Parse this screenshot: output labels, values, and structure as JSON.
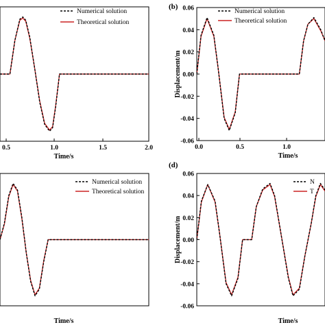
{
  "chart_data": [
    {
      "type": "line",
      "panel_label": "",
      "xlabel": "Time/s",
      "ylabel": "",
      "xlim": [
        0.5,
        2.0
      ],
      "ylim": [
        -0.06,
        0.06
      ],
      "xticks": [
        "0.5",
        "1.0",
        "1.5",
        "2.0"
      ],
      "yticks": [],
      "legend": [
        "Numerical solution",
        "Theoretical solution"
      ],
      "legend_position": "top-right",
      "series": [
        {
          "name": "Numerical solution",
          "style": "dashed",
          "color": "#000000",
          "x": [
            0.5,
            0.6,
            0.65,
            0.7,
            0.73,
            0.76,
            0.8,
            0.85,
            0.9,
            0.95,
            1.0,
            1.03,
            1.06,
            1.1,
            2.0
          ],
          "y": [
            0,
            0,
            0.03,
            0.049,
            0.051,
            0.048,
            0.033,
            0.005,
            -0.025,
            -0.045,
            -0.051,
            -0.048,
            -0.03,
            0,
            0
          ]
        },
        {
          "name": "Theoretical solution",
          "style": "solid",
          "color": "#cc2222",
          "x": [
            0.5,
            0.6,
            0.65,
            0.7,
            0.73,
            0.76,
            0.8,
            0.85,
            0.9,
            0.95,
            1.0,
            1.03,
            1.06,
            1.1,
            2.0
          ],
          "y": [
            0,
            0,
            0.03,
            0.048,
            0.05,
            0.047,
            0.032,
            0.005,
            -0.024,
            -0.044,
            -0.05,
            -0.047,
            -0.029,
            0,
            0
          ]
        }
      ]
    },
    {
      "type": "line",
      "panel_label": "(b)",
      "xlabel": "Time/s",
      "ylabel": "Displacement/m",
      "xlim": [
        0.0,
        1.5
      ],
      "ylim": [
        -0.06,
        0.06
      ],
      "xticks": [
        "0.0",
        "0.5",
        "1.0"
      ],
      "yticks": [
        "-0.06",
        "-0.04",
        "-0.02",
        "0.00",
        "0.02",
        "0.04",
        "0.06"
      ],
      "legend": [
        "Numerical solution",
        "Theoretical solution"
      ],
      "legend_position": "top-right",
      "series": [
        {
          "name": "Numerical solution",
          "style": "dashed",
          "color": "#000000",
          "x": [
            0.0,
            0.05,
            0.12,
            0.2,
            0.25,
            0.32,
            0.38,
            0.45,
            0.5,
            0.55,
            1.2,
            1.25,
            1.3,
            1.37,
            1.45,
            1.5
          ],
          "y": [
            0,
            0.035,
            0.051,
            0.035,
            0.005,
            -0.04,
            -0.051,
            -0.035,
            0,
            0,
            0,
            0.03,
            0.045,
            0.051,
            0.04,
            0.03
          ]
        },
        {
          "name": "Theoretical solution",
          "style": "solid",
          "color": "#cc2222",
          "x": [
            0.0,
            0.05,
            0.12,
            0.2,
            0.25,
            0.32,
            0.38,
            0.45,
            0.5,
            0.55,
            1.2,
            1.25,
            1.3,
            1.37,
            1.45,
            1.5
          ],
          "y": [
            0,
            0.034,
            0.05,
            0.034,
            0.005,
            -0.039,
            -0.05,
            -0.034,
            0,
            0,
            0,
            0.03,
            0.045,
            0.05,
            0.039,
            0.03
          ]
        }
      ]
    },
    {
      "type": "line",
      "panel_label": "",
      "xlabel": "Time/s",
      "ylabel": "",
      "xlim": [
        0.3,
        2.0
      ],
      "ylim": [
        -0.06,
        0.06
      ],
      "xticks": [],
      "yticks": [],
      "legend": [
        "Numerical solution",
        "Theoretical solution"
      ],
      "legend_position": "top-right",
      "series": [
        {
          "name": "Numerical solution",
          "style": "dashed",
          "color": "#000000",
          "x": [
            0.3,
            0.35,
            0.4,
            0.45,
            0.5,
            0.55,
            0.6,
            0.65,
            0.7,
            0.75,
            0.8,
            0.85,
            2.0
          ],
          "y": [
            0,
            0.015,
            0.04,
            0.051,
            0.045,
            0.02,
            -0.012,
            -0.038,
            -0.051,
            -0.045,
            -0.02,
            0,
            0
          ]
        },
        {
          "name": "Theoretical solution",
          "style": "solid",
          "color": "#cc2222",
          "x": [
            0.3,
            0.35,
            0.4,
            0.45,
            0.5,
            0.55,
            0.6,
            0.65,
            0.7,
            0.75,
            0.8,
            0.85,
            2.0
          ],
          "y": [
            0,
            0.014,
            0.039,
            0.05,
            0.044,
            0.019,
            -0.012,
            -0.037,
            -0.05,
            -0.044,
            -0.019,
            0,
            0
          ]
        }
      ]
    },
    {
      "type": "line",
      "panel_label": "(d)",
      "xlabel": "Time/s",
      "ylabel": "Displacement/m",
      "xlim": [
        0.0,
        1.4
      ],
      "ylim": [
        -0.06,
        0.06
      ],
      "xticks": [],
      "yticks": [
        "-0.06",
        "-0.04",
        "-0.02",
        "0.00",
        "0.02",
        "0.04",
        "0.06"
      ],
      "legend": [
        "N",
        "T"
      ],
      "legend_position": "top-right",
      "series": [
        {
          "name": "N",
          "style": "dashed",
          "color": "#000000",
          "x": [
            0.0,
            0.05,
            0.12,
            0.2,
            0.25,
            0.32,
            0.38,
            0.45,
            0.5,
            0.6,
            0.65,
            0.72,
            0.8,
            0.85,
            0.92,
            1.0,
            1.05,
            1.12,
            1.18,
            1.25,
            1.3,
            1.35,
            1.4
          ],
          "y": [
            0,
            0.035,
            0.05,
            0.035,
            0.005,
            -0.04,
            -0.051,
            -0.035,
            0,
            0,
            0.03,
            0.046,
            0.051,
            0.04,
            0.005,
            -0.035,
            -0.051,
            -0.045,
            -0.015,
            0.015,
            0.04,
            0.051,
            0.045
          ]
        },
        {
          "name": "T",
          "style": "solid",
          "color": "#cc2222",
          "x": [
            0.0,
            0.05,
            0.12,
            0.2,
            0.25,
            0.32,
            0.38,
            0.45,
            0.5,
            0.6,
            0.65,
            0.72,
            0.8,
            0.85,
            0.92,
            1.0,
            1.05,
            1.12,
            1.18,
            1.25,
            1.3,
            1.35,
            1.4
          ],
          "y": [
            0,
            0.034,
            0.05,
            0.034,
            0.005,
            -0.039,
            -0.05,
            -0.034,
            0,
            0,
            0.03,
            0.045,
            0.05,
            0.039,
            0.005,
            -0.034,
            -0.05,
            -0.044,
            -0.015,
            0.015,
            0.039,
            0.05,
            0.044
          ]
        }
      ]
    }
  ],
  "colors": {
    "numerical": "#000000",
    "theoretical": "#cc2222"
  }
}
